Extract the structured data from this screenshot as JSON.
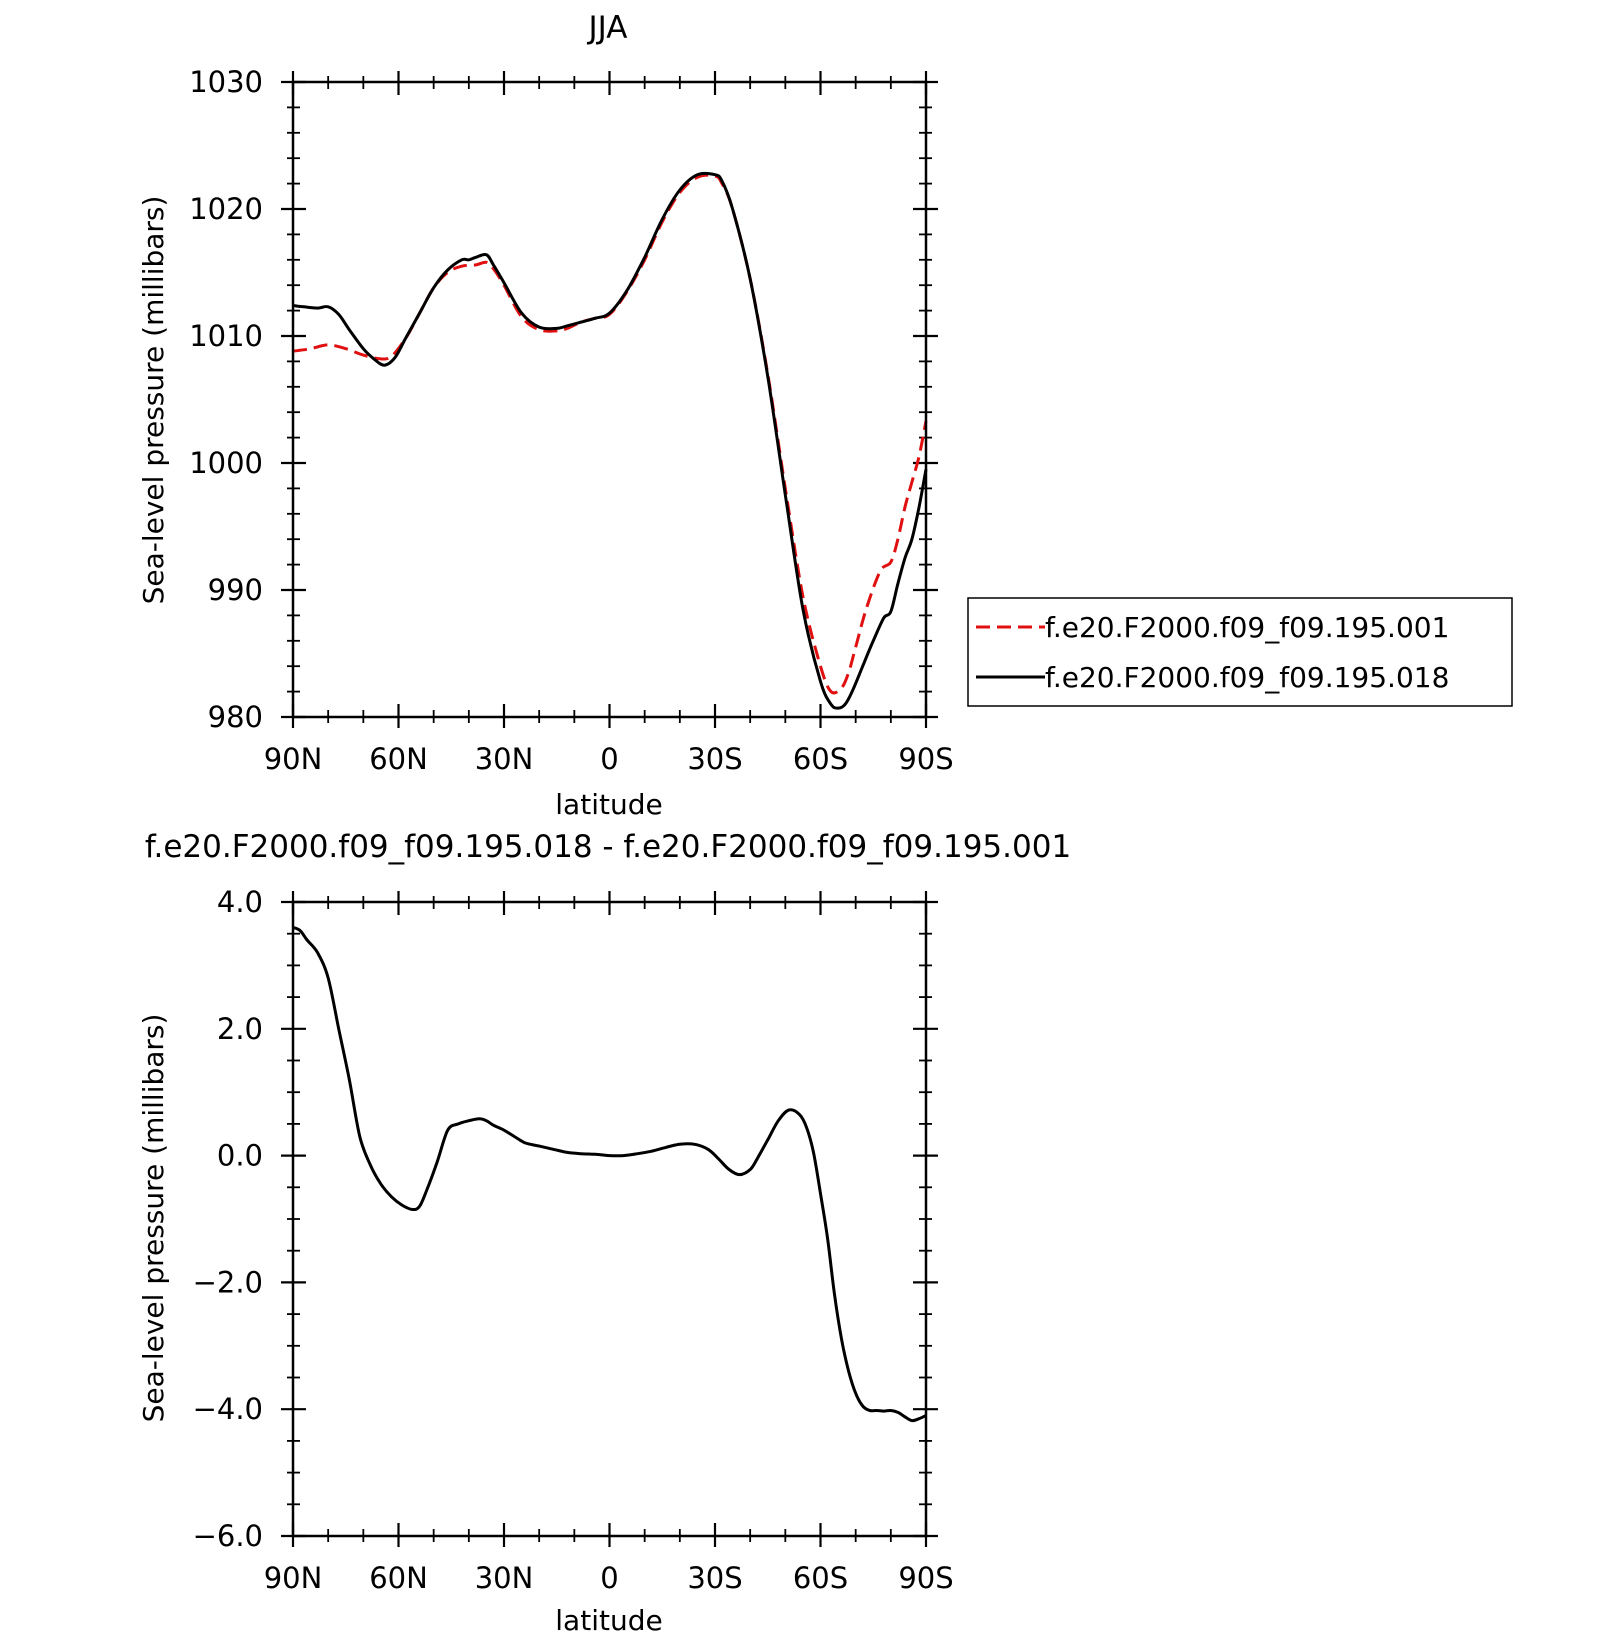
{
  "chart_data": [
    {
      "type": "line",
      "title": "JJA",
      "xlabel": "latitude",
      "ylabel": "Sea-level pressure (millibars)",
      "xlim": [
        90,
        -90
      ],
      "ylim": [
        980,
        1030
      ],
      "xticks": [
        90,
        60,
        30,
        0,
        -30,
        -60,
        -90
      ],
      "xtick_labels": [
        "90N",
        "60N",
        "30N",
        "0",
        "30S",
        "60S",
        "90S"
      ],
      "yticks": [
        980,
        990,
        1000,
        1010,
        1020,
        1030
      ],
      "ytick_labels": [
        "980",
        "990",
        "1000",
        "1010",
        "1020",
        "1030"
      ],
      "legend": "right",
      "series": [
        {
          "name": "f.e20.F2000.f09_f09.195.001",
          "color": "#e01010",
          "dash": "dashed",
          "x": [
            90,
            85,
            80,
            75,
            70,
            65,
            62,
            58,
            54,
            50,
            46,
            42,
            38,
            35,
            33,
            30,
            25,
            20,
            15,
            12,
            8,
            4,
            0,
            -5,
            -10,
            -15,
            -20,
            -25,
            -30,
            -32,
            -35,
            -40,
            -45,
            -50,
            -55,
            -60,
            -63,
            -66,
            -68,
            -70,
            -73,
            -77,
            -80,
            -82,
            -84,
            -86,
            -88,
            -90
          ],
          "y": [
            1008.8,
            1009.0,
            1009.3,
            1009.0,
            1008.5,
            1008.2,
            1008.4,
            1009.8,
            1011.8,
            1013.8,
            1015.0,
            1015.5,
            1015.6,
            1015.8,
            1015.3,
            1014.0,
            1011.5,
            1010.5,
            1010.4,
            1010.6,
            1011.1,
            1011.4,
            1011.7,
            1013.5,
            1016.0,
            1019.0,
            1021.3,
            1022.5,
            1022.6,
            1022.0,
            1020.0,
            1014.5,
            1007.0,
            998.0,
            989.5,
            984.0,
            982.0,
            982.3,
            983.5,
            985.5,
            988.5,
            991.5,
            992.2,
            994.0,
            996.5,
            998.5,
            1000.5,
            1003.3
          ]
        },
        {
          "name": "f.e20.F2000.f09_f09.195.018",
          "color": "#000000",
          "dash": "solid",
          "x": [
            90,
            87,
            83,
            80,
            77,
            74,
            70,
            67,
            64,
            61,
            58,
            54,
            50,
            46,
            42,
            40,
            38,
            35,
            33,
            30,
            25,
            20,
            15,
            12,
            8,
            4,
            0,
            -5,
            -10,
            -15,
            -20,
            -25,
            -30,
            -32,
            -35,
            -40,
            -45,
            -50,
            -55,
            -60,
            -63,
            -65,
            -67,
            -69,
            -72,
            -75,
            -78,
            -80,
            -82,
            -84,
            -86,
            -88,
            -90
          ],
          "y": [
            1012.4,
            1012.3,
            1012.2,
            1012.3,
            1011.7,
            1010.5,
            1009.0,
            1008.2,
            1007.7,
            1008.3,
            1009.8,
            1011.8,
            1013.8,
            1015.2,
            1016.0,
            1016.0,
            1016.2,
            1016.4,
            1015.6,
            1014.2,
            1011.8,
            1010.7,
            1010.6,
            1010.8,
            1011.1,
            1011.4,
            1011.8,
            1013.6,
            1016.2,
            1019.2,
            1021.5,
            1022.7,
            1022.7,
            1022.2,
            1020.0,
            1014.5,
            1006.8,
            997.5,
            988.5,
            982.8,
            981.0,
            980.7,
            981.0,
            982.0,
            984.0,
            986.0,
            987.8,
            988.3,
            990.5,
            992.5,
            994.0,
            996.5,
            999.5
          ]
        }
      ]
    },
    {
      "type": "line",
      "title": "f.e20.F2000.f09_f09.195.018 - f.e20.F2000.f09_f09.195.001",
      "xlabel": "latitude",
      "ylabel": "Sea-level pressure (millibars)",
      "xlim": [
        90,
        -90
      ],
      "ylim": [
        -6.0,
        4.0
      ],
      "xticks": [
        90,
        60,
        30,
        0,
        -30,
        -60,
        -90
      ],
      "xtick_labels": [
        "90N",
        "60N",
        "30N",
        "0",
        "30S",
        "60S",
        "90S"
      ],
      "yticks": [
        -6.0,
        -4.0,
        -2.0,
        0.0,
        2.0,
        4.0
      ],
      "ytick_labels": [
        "−6.0",
        "−4.0",
        "−2.0",
        "0.0",
        "2.0",
        "4.0"
      ],
      "series": [
        {
          "color": "#000000",
          "dash": "solid",
          "x": [
            90,
            88,
            86,
            83,
            80,
            77,
            74,
            71,
            68,
            65,
            62,
            59,
            56,
            54,
            52,
            49,
            46,
            43,
            40,
            37,
            35,
            33,
            30,
            27,
            24,
            20,
            16,
            12,
            8,
            4,
            0,
            -4,
            -8,
            -12,
            -16,
            -20,
            -24,
            -28,
            -31,
            -34,
            -37,
            -40,
            -42,
            -45,
            -48,
            -51,
            -54,
            -56,
            -58,
            -60,
            -62,
            -64,
            -66,
            -68,
            -70,
            -72,
            -74,
            -76,
            -78,
            -80,
            -82,
            -84,
            -86,
            -88,
            -90
          ],
          "y": [
            3.6,
            3.55,
            3.4,
            3.2,
            2.8,
            2.0,
            1.2,
            0.3,
            -0.15,
            -0.45,
            -0.65,
            -0.78,
            -0.85,
            -0.8,
            -0.55,
            -0.1,
            0.4,
            0.5,
            0.55,
            0.58,
            0.55,
            0.48,
            0.4,
            0.3,
            0.2,
            0.15,
            0.1,
            0.05,
            0.03,
            0.02,
            0.0,
            0.0,
            0.03,
            0.07,
            0.13,
            0.18,
            0.18,
            0.1,
            -0.05,
            -0.22,
            -0.3,
            -0.22,
            -0.05,
            0.25,
            0.55,
            0.72,
            0.65,
            0.45,
            0.05,
            -0.6,
            -1.3,
            -2.2,
            -2.9,
            -3.4,
            -3.75,
            -3.95,
            -4.02,
            -4.02,
            -4.03,
            -4.02,
            -4.05,
            -4.12,
            -4.18,
            -4.15,
            -4.1
          ]
        }
      ]
    }
  ]
}
